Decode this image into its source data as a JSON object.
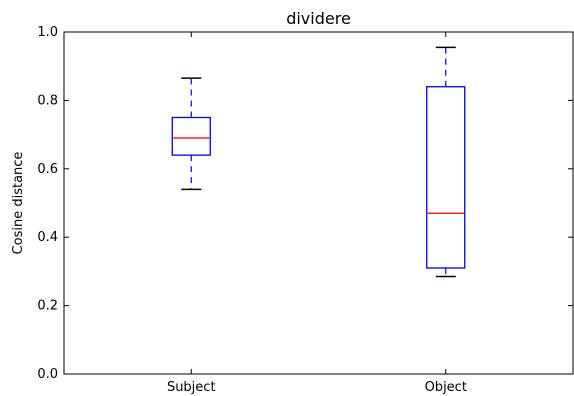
{
  "chart_data": {
    "type": "box",
    "title": "dividere",
    "xlabel": "",
    "ylabel": "Cosine distance",
    "ylim": [
      0.0,
      1.0
    ],
    "yticks": [
      "0.0",
      "0.2",
      "0.4",
      "0.6",
      "0.8",
      "1.0"
    ],
    "categories": [
      "Subject",
      "Object"
    ],
    "boxes": [
      {
        "whisker_low": 0.54,
        "q1": 0.64,
        "median": 0.69,
        "q3": 0.75,
        "whisker_high": 0.865
      },
      {
        "whisker_low": 0.285,
        "q1": 0.31,
        "median": 0.47,
        "q3": 0.84,
        "whisker_high": 0.955
      }
    ],
    "grid": false,
    "colors": {
      "box": "#0000ff",
      "median": "#ff0000",
      "whisker": "#0000ff",
      "cap": "#000000",
      "axes": "#000000"
    }
  }
}
